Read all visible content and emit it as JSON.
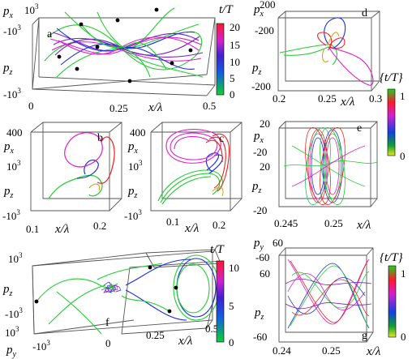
{
  "figure": {
    "panels": [
      {
        "id": "a",
        "letter": "a",
        "ptop": "p",
        "ptop_sub": "x",
        "top_tick1": "10",
        "top_tick1_exp": "3",
        "top_tick2": "-10",
        "top_tick2_exp": "3",
        "pside": "p",
        "pside_sub": "z",
        "bot_tick": "-10",
        "bot_tick_exp": "3",
        "x_ticks": [
          "0",
          "0.25",
          "0.5"
        ],
        "xlabel": "x/λ"
      },
      {
        "id": "b",
        "letter": "b",
        "ptop": "p",
        "ptop_sub": "x",
        "top_tick1": "400",
        "top_tick2": "10",
        "top_tick2_exp": "3",
        "pside": "p",
        "pside_sub": "z",
        "bot_tick": "-10",
        "bot_tick_exp": "3",
        "x_ticks": [
          "0.1",
          "0.2"
        ],
        "xlabel": "x/λ"
      },
      {
        "id": "c",
        "letter": "c",
        "ptop": "p",
        "ptop_sub": "x",
        "top_tick1": "400",
        "top_tick2": "10",
        "top_tick2_exp": "3",
        "pside": "p",
        "pside_sub": "z",
        "bot_tick": "-10",
        "bot_tick_exp": "3",
        "x_ticks": [
          "0.1",
          "0.2"
        ],
        "xlabel": "x/λ"
      },
      {
        "id": "d",
        "letter": "d",
        "ptop": "p",
        "ptop_sub": "x",
        "top_tick1": "200",
        "top_tick2": "-200",
        "pside": "p",
        "pside_sub": "z",
        "bot_tick": "-200",
        "x_ticks": [
          "0.2",
          "0.25",
          "0.3"
        ],
        "xlabel": "x/λ"
      },
      {
        "id": "e",
        "letter": "e",
        "ptop": "p",
        "ptop_sub": "x",
        "top_tick1": "20",
        "top_tick2": "-20",
        "top_tick3": "20",
        "pside": "p",
        "pside_sub": "z",
        "bot_tick": "-20",
        "x_ticks": [
          "0.245",
          "0.25"
        ],
        "xlabel": "x/λ"
      },
      {
        "id": "f",
        "letter": "f",
        "ptop": "p",
        "ptop_sub": "z",
        "top_tick1": "10",
        "top_tick1_exp": "3",
        "bot_tick": "-10",
        "bot_tick_exp": "3",
        "side_tick": "10",
        "side_tick_exp": "3",
        "py_tick": "-10",
        "py_tick_exp": "3",
        "pside": "p",
        "pside_sub": "y",
        "x_ticks": [
          "0",
          "0.25",
          "0.5"
        ],
        "xlabel": "x/λ"
      },
      {
        "id": "g",
        "letter": "g",
        "ptop": "p",
        "ptop_sub": "y",
        "top_tick1": "60",
        "top_tick2": "-60",
        "side_tick": "60",
        "pside": "p",
        "pside_sub": "z",
        "bot_tick": "-60",
        "x_ticks": [
          "0.24",
          "0.25"
        ],
        "xlabel": "x/λ"
      }
    ],
    "colorbars": [
      {
        "id": "cb1",
        "title": "t/T",
        "ticks": [
          "20",
          "15",
          "10",
          "5",
          "0"
        ]
      },
      {
        "id": "cb2",
        "title": "{t/T}",
        "ticks": [
          "1",
          "0"
        ]
      },
      {
        "id": "cb3",
        "title": "t/T",
        "ticks": [
          "10",
          "5",
          "0"
        ]
      },
      {
        "id": "cb4",
        "title": "{t/T}",
        "ticks": [
          "1",
          "0"
        ]
      }
    ],
    "colors": {
      "green": "#22cc33",
      "blue": "#1a2fd6",
      "magenta": "#e020c8",
      "red": "#f02020",
      "purple": "#7a1fc8"
    }
  }
}
